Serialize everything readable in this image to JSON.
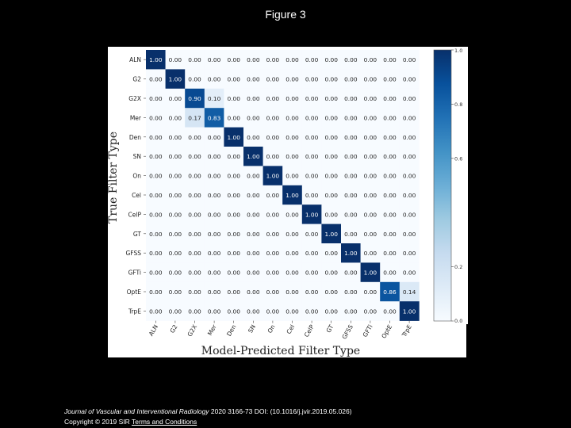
{
  "slide": {
    "title": "Figure 3",
    "citation_journal": "Journal of Vascular and Interventional Radiology",
    "citation_details": " 2020 3166-73 DOI: (10.1016/j.jvir.2019.05.026)",
    "copyright": "Copyright © 2019 SIR",
    "terms_link": "Terms and Conditions"
  },
  "chart_data": {
    "type": "heatmap",
    "title": "",
    "xlabel": "Model-Predicted Filter Type",
    "ylabel": "True Filter Type",
    "x_categories": [
      "ALN",
      "G2",
      "G2X",
      "Mer",
      "Den",
      "SN",
      "On",
      "Cel",
      "CelP",
      "GT",
      "GFSS",
      "GFTi",
      "OptE",
      "TrpE"
    ],
    "y_categories": [
      "ALN",
      "G2",
      "G2X",
      "Mer",
      "Den",
      "SN",
      "On",
      "Cel",
      "CelP",
      "GT",
      "GFSS",
      "GFTi",
      "OptE",
      "TrpE"
    ],
    "values": [
      [
        1.0,
        0.0,
        0.0,
        0.0,
        0.0,
        0.0,
        0.0,
        0.0,
        0.0,
        0.0,
        0.0,
        0.0,
        0.0,
        0.0
      ],
      [
        0.0,
        1.0,
        0.0,
        0.0,
        0.0,
        0.0,
        0.0,
        0.0,
        0.0,
        0.0,
        0.0,
        0.0,
        0.0,
        0.0
      ],
      [
        0.0,
        0.0,
        0.9,
        0.1,
        0.0,
        0.0,
        0.0,
        0.0,
        0.0,
        0.0,
        0.0,
        0.0,
        0.0,
        0.0
      ],
      [
        0.0,
        0.0,
        0.17,
        0.83,
        0.0,
        0.0,
        0.0,
        0.0,
        0.0,
        0.0,
        0.0,
        0.0,
        0.0,
        0.0
      ],
      [
        0.0,
        0.0,
        0.0,
        0.0,
        1.0,
        0.0,
        0.0,
        0.0,
        0.0,
        0.0,
        0.0,
        0.0,
        0.0,
        0.0
      ],
      [
        0.0,
        0.0,
        0.0,
        0.0,
        0.0,
        1.0,
        0.0,
        0.0,
        0.0,
        0.0,
        0.0,
        0.0,
        0.0,
        0.0
      ],
      [
        0.0,
        0.0,
        0.0,
        0.0,
        0.0,
        0.0,
        1.0,
        0.0,
        0.0,
        0.0,
        0.0,
        0.0,
        0.0,
        0.0
      ],
      [
        0.0,
        0.0,
        0.0,
        0.0,
        0.0,
        0.0,
        0.0,
        1.0,
        0.0,
        0.0,
        0.0,
        0.0,
        0.0,
        0.0
      ],
      [
        0.0,
        0.0,
        0.0,
        0.0,
        0.0,
        0.0,
        0.0,
        0.0,
        1.0,
        0.0,
        0.0,
        0.0,
        0.0,
        0.0
      ],
      [
        0.0,
        0.0,
        0.0,
        0.0,
        0.0,
        0.0,
        0.0,
        0.0,
        0.0,
        1.0,
        0.0,
        0.0,
        0.0,
        0.0
      ],
      [
        0.0,
        0.0,
        0.0,
        0.0,
        0.0,
        0.0,
        0.0,
        0.0,
        0.0,
        0.0,
        1.0,
        0.0,
        0.0,
        0.0
      ],
      [
        0.0,
        0.0,
        0.0,
        0.0,
        0.0,
        0.0,
        0.0,
        0.0,
        0.0,
        0.0,
        0.0,
        1.0,
        0.0,
        0.0
      ],
      [
        0.0,
        0.0,
        0.0,
        0.0,
        0.0,
        0.0,
        0.0,
        0.0,
        0.0,
        0.0,
        0.0,
        0.0,
        0.86,
        0.14
      ],
      [
        0.0,
        0.0,
        0.0,
        0.0,
        0.0,
        0.0,
        0.0,
        0.0,
        0.0,
        0.0,
        0.0,
        0.0,
        0.0,
        1.0
      ]
    ],
    "value_range": [
      0.0,
      1.0
    ],
    "colorbar_ticks": [
      "1.0",
      "0.8",
      "0.6",
      "0.2",
      "0.0"
    ],
    "colormap": "Blues",
    "colors": {
      "low": "#f7fbff",
      "high": "#08306b"
    }
  }
}
